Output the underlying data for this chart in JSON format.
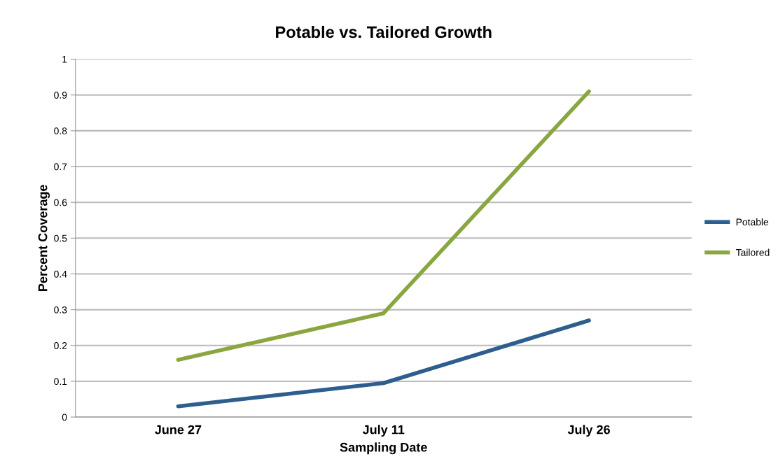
{
  "chart_data": {
    "type": "line",
    "title": "Potable vs. Tailored Growth",
    "xlabel": "Sampling Date",
    "ylabel": "Percent Coverage",
    "categories": [
      "June 27",
      "July 11",
      "July 26"
    ],
    "series": [
      {
        "name": "Potable",
        "color": "#2e5e8e",
        "values": [
          0.03,
          0.095,
          0.27
        ]
      },
      {
        "name": "Tailored",
        "color": "#8aa640",
        "values": [
          0.16,
          0.29,
          0.91
        ]
      }
    ],
    "ylim": [
      0,
      1
    ],
    "yticks": [
      0,
      0.1,
      0.2,
      0.3,
      0.4,
      0.5,
      0.6,
      0.7,
      0.8,
      0.9,
      1
    ],
    "grid": "y",
    "legend": "right",
    "marker": "none",
    "line_style": "solid"
  }
}
